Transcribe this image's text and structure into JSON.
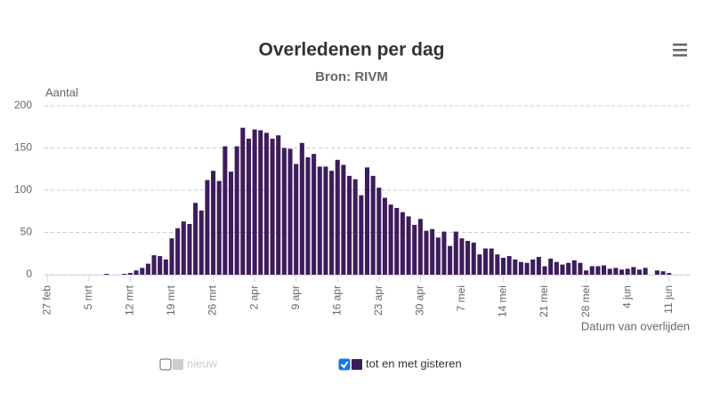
{
  "chart_data": {
    "type": "bar",
    "title": "Overledenen per dag",
    "subtitle": "Bron: RIVM",
    "y_label": "Aantal",
    "x_label": "Datum van overlijden",
    "categories": [
      "27 feb",
      null,
      null,
      null,
      null,
      null,
      null,
      "5 mrt",
      null,
      null,
      null,
      null,
      null,
      null,
      "12 mrt",
      null,
      null,
      null,
      null,
      null,
      null,
      "19 mrt",
      null,
      null,
      null,
      null,
      null,
      null,
      "26 mrt",
      null,
      null,
      null,
      null,
      null,
      null,
      "2 apr",
      null,
      null,
      null,
      null,
      null,
      null,
      "9 apr",
      null,
      null,
      null,
      null,
      null,
      null,
      "16 apr",
      null,
      null,
      null,
      null,
      null,
      null,
      "23 apr",
      null,
      null,
      null,
      null,
      null,
      null,
      "30 apr",
      null,
      null,
      null,
      null,
      null,
      null,
      "7 mei",
      null,
      null,
      null,
      null,
      null,
      null,
      "14 mei",
      null,
      null,
      null,
      null,
      null,
      null,
      "21 mei",
      null,
      null,
      null,
      null,
      null,
      null,
      "28 mei",
      null,
      null,
      null,
      null,
      null,
      null,
      "4 jun",
      null,
      null,
      null,
      null,
      null,
      null,
      "11 jun",
      null,
      null,
      null
    ],
    "series": [
      {
        "name": "nieuw",
        "color": "#cccccc",
        "visible": false
      },
      {
        "name": "tot en met gisteren",
        "color": "#3d1c5c",
        "visible": true,
        "values": [
          0,
          0,
          0,
          0,
          0,
          0,
          0,
          0,
          0,
          0,
          1,
          0,
          0,
          1,
          2,
          5,
          8,
          13,
          23,
          22,
          18,
          43,
          55,
          63,
          60,
          85,
          76,
          112,
          123,
          111,
          152,
          122,
          152,
          174,
          161,
          172,
          171,
          168,
          161,
          165,
          150,
          149,
          131,
          156,
          139,
          143,
          128,
          128,
          123,
          136,
          130,
          117,
          113,
          94,
          127,
          117,
          103,
          91,
          83,
          79,
          74,
          69,
          59,
          66,
          52,
          54,
          44,
          51,
          34,
          51,
          43,
          40,
          38,
          24,
          31,
          31,
          24,
          20,
          22,
          18,
          15,
          14,
          18,
          21,
          10,
          19,
          15,
          12,
          14,
          17,
          14,
          5,
          10,
          10,
          11,
          7,
          8,
          6,
          7,
          9,
          6,
          8,
          0,
          5,
          4,
          2,
          null,
          null,
          null
        ]
      }
    ],
    "ylim": [
      0,
      200
    ],
    "yticks": [
      0,
      50,
      100,
      150,
      200
    ],
    "grid": true
  }
}
